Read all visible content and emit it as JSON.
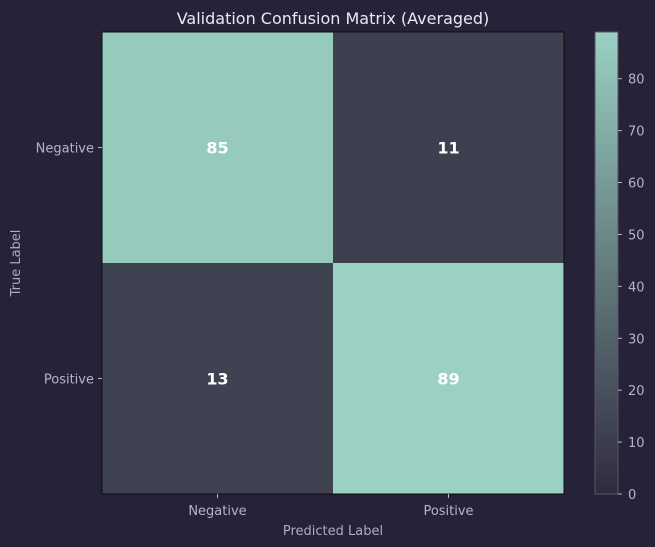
{
  "chart_data": {
    "type": "heatmap",
    "title": "Validation Confusion Matrix (Averaged)",
    "xlabel": "Predicted Label",
    "ylabel": "True Label",
    "x_categories": [
      "Negative",
      "Positive"
    ],
    "y_categories": [
      "Negative",
      "Positive"
    ],
    "values": [
      [
        85,
        11
      ],
      [
        13,
        89
      ]
    ],
    "colorbar": {
      "range": [
        0,
        89
      ],
      "ticks": [
        0,
        10,
        20,
        30,
        40,
        50,
        60,
        70,
        80
      ],
      "color_low": "#302b3e",
      "color_high": "#9ad1c2"
    },
    "grid": false,
    "background": "#262237"
  }
}
